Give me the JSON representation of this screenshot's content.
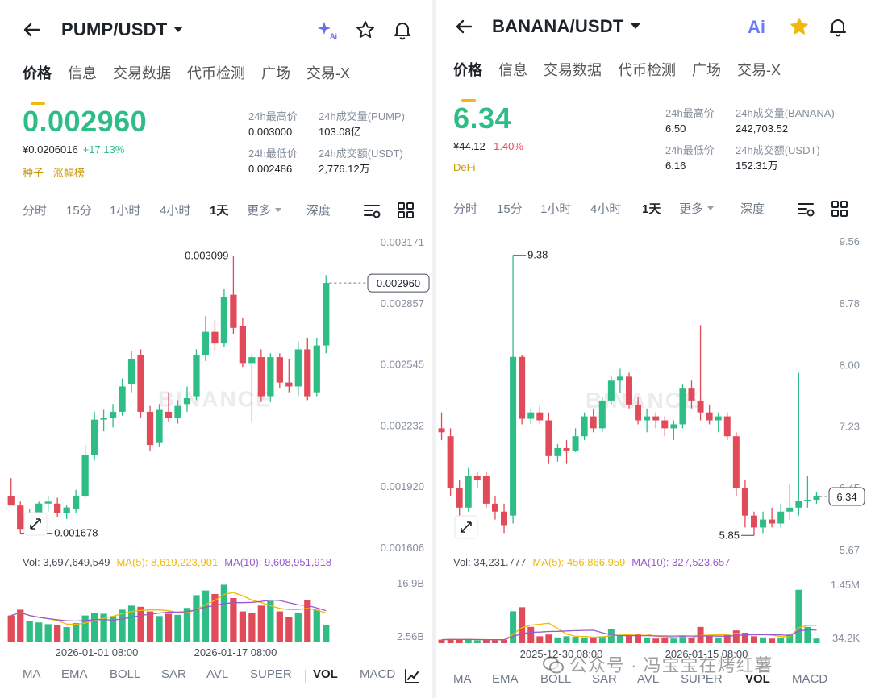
{
  "left": {
    "pair": "PUMP/USDT",
    "tabs": [
      "价格",
      "信息",
      "交易数据",
      "代币检测",
      "广场",
      "交易-X"
    ],
    "price": "0.002960",
    "fiat": "¥0.0206016",
    "change": "+17.13%",
    "tags": [
      "种子",
      "涨幅榜"
    ],
    "stats": {
      "high_label": "24h最高价",
      "high": "0.003000",
      "vol_label": "24h成交量(PUMP)",
      "vol": "103.08亿",
      "low_label": "24h最低价",
      "low": "0.002486",
      "amt_label": "24h成交额(USDT)",
      "amt": "2,776.12万"
    },
    "intervals": [
      "分时",
      "15分",
      "1小时",
      "4小时",
      "1天",
      "更多",
      "深度"
    ],
    "active_interval": "1天",
    "vol_info": {
      "vol": "Vol: 3,697,649,549",
      "ma5": "MA(5): 8,619,223,901",
      "ma10": "MA(10): 9,608,951,918"
    },
    "indicators": [
      "MA",
      "EMA",
      "BOLL",
      "SAR",
      "AVL",
      "SUPER",
      "VOL",
      "MACD"
    ],
    "active_indicator": "VOL"
  },
  "right": {
    "pair": "BANANA/USDT",
    "tabs": [
      "价格",
      "信息",
      "交易数据",
      "代币检测",
      "广场",
      "交易-X"
    ],
    "price": "6.34",
    "fiat": "¥44.12",
    "change": "-1.40%",
    "tags": [
      "DeFi"
    ],
    "stats": {
      "high_label": "24h最高价",
      "high": "6.50",
      "vol_label": "24h成交量(BANANA)",
      "vol": "242,703.52",
      "low_label": "24h最低价",
      "low": "6.16",
      "amt_label": "24h成交额(USDT)",
      "amt": "152.31万"
    },
    "intervals": [
      "分时",
      "15分",
      "1小时",
      "4小时",
      "1天",
      "更多",
      "深度"
    ],
    "active_interval": "1天",
    "vol_info": {
      "vol": "Vol: 34,231.777",
      "ma5": "MA(5): 456,866.959",
      "ma10": "MA(10): 327,523.657"
    },
    "indicators": [
      "MA",
      "EMA",
      "BOLL",
      "SAR",
      "AVL",
      "SUPER",
      "VOL",
      "MACD"
    ],
    "active_indicator": "VOL"
  },
  "watermark": "公众号 · 冯宝宝在烤红薯",
  "brand_watermark": "BINANCE",
  "colors": {
    "up": "#2ebd85",
    "down": "#e04a59",
    "accent": "#f0b90b",
    "ma5": "#f0b90b",
    "ma10": "#9b59d0"
  },
  "chart_data": [
    {
      "type": "candlestick",
      "title": "PUMP/USDT 1天",
      "y_ticks": [
        "0.003171",
        "0.002857",
        "0.002545",
        "0.002232",
        "0.001920",
        "0.001606"
      ],
      "ylim": [
        0.001606,
        0.003171
      ],
      "current_price": "0.002960",
      "max_label": "0.003099",
      "min_label": "0.001678",
      "x_ticks": [
        "2026-01-01 08:00",
        "2026-01-17 08:00"
      ],
      "vol_ticks": [
        "16.9B",
        "2.56B"
      ],
      "candles": [
        {
          "o": 0.00187,
          "h": 0.00196,
          "l": 0.00183,
          "c": 0.00182
        },
        {
          "o": 0.00182,
          "h": 0.00184,
          "l": 0.001678,
          "c": 0.0017
        },
        {
          "o": 0.00173,
          "h": 0.0018,
          "l": 0.0017,
          "c": 0.00178
        },
        {
          "o": 0.00178,
          "h": 0.00184,
          "l": 0.00175,
          "c": 0.00183
        },
        {
          "o": 0.00183,
          "h": 0.00187,
          "l": 0.00179,
          "c": 0.00184
        },
        {
          "o": 0.00183,
          "h": 0.00186,
          "l": 0.00176,
          "c": 0.00178
        },
        {
          "o": 0.00178,
          "h": 0.00182,
          "l": 0.00175,
          "c": 0.00181
        },
        {
          "o": 0.0018,
          "h": 0.0019,
          "l": 0.00178,
          "c": 0.00187
        },
        {
          "o": 0.00187,
          "h": 0.00213,
          "l": 0.00186,
          "c": 0.00208
        },
        {
          "o": 0.00208,
          "h": 0.0023,
          "l": 0.00205,
          "c": 0.00226
        },
        {
          "o": 0.00226,
          "h": 0.00231,
          "l": 0.0022,
          "c": 0.00227
        },
        {
          "o": 0.00227,
          "h": 0.00234,
          "l": 0.00222,
          "c": 0.0023
        },
        {
          "o": 0.0023,
          "h": 0.00247,
          "l": 0.00228,
          "c": 0.00243
        },
        {
          "o": 0.00244,
          "h": 0.00261,
          "l": 0.0024,
          "c": 0.00257
        },
        {
          "o": 0.00259,
          "h": 0.00262,
          "l": 0.00227,
          "c": 0.0023
        },
        {
          "o": 0.0023,
          "h": 0.00233,
          "l": 0.0021,
          "c": 0.00213
        },
        {
          "o": 0.00214,
          "h": 0.00234,
          "l": 0.00212,
          "c": 0.00231
        },
        {
          "o": 0.0023,
          "h": 0.0024,
          "l": 0.00225,
          "c": 0.00227
        },
        {
          "o": 0.00227,
          "h": 0.00236,
          "l": 0.00224,
          "c": 0.00233
        },
        {
          "o": 0.00234,
          "h": 0.00243,
          "l": 0.0023,
          "c": 0.00237
        },
        {
          "o": 0.00238,
          "h": 0.00262,
          "l": 0.00236,
          "c": 0.00259
        },
        {
          "o": 0.00259,
          "h": 0.00279,
          "l": 0.00256,
          "c": 0.00271
        },
        {
          "o": 0.00271,
          "h": 0.00277,
          "l": 0.00261,
          "c": 0.00265
        },
        {
          "o": 0.00265,
          "h": 0.00293,
          "l": 0.00263,
          "c": 0.00289
        },
        {
          "o": 0.0029,
          "h": 0.003099,
          "l": 0.0027,
          "c": 0.00273
        },
        {
          "o": 0.00274,
          "h": 0.00278,
          "l": 0.00253,
          "c": 0.00255
        },
        {
          "o": 0.00255,
          "h": 0.0026,
          "l": 0.00225,
          "c": 0.00258
        },
        {
          "o": 0.00258,
          "h": 0.00262,
          "l": 0.00235,
          "c": 0.00238
        },
        {
          "o": 0.00238,
          "h": 0.0026,
          "l": 0.00235,
          "c": 0.00258
        },
        {
          "o": 0.00258,
          "h": 0.0026,
          "l": 0.00242,
          "c": 0.00245
        },
        {
          "o": 0.00245,
          "h": 0.00257,
          "l": 0.0024,
          "c": 0.00243
        },
        {
          "o": 0.00243,
          "h": 0.00266,
          "l": 0.00238,
          "c": 0.00262
        },
        {
          "o": 0.00262,
          "h": 0.00268,
          "l": 0.00236,
          "c": 0.00238
        },
        {
          "o": 0.0024,
          "h": 0.00268,
          "l": 0.00238,
          "c": 0.00264
        },
        {
          "o": 0.00264,
          "h": 0.003,
          "l": 0.0026,
          "c": 0.00296
        }
      ],
      "volumes": [
        {
          "v": 0.45,
          "up": false
        },
        {
          "v": 0.55,
          "up": false
        },
        {
          "v": 0.35,
          "up": true
        },
        {
          "v": 0.33,
          "up": true
        },
        {
          "v": 0.3,
          "up": true
        },
        {
          "v": 0.28,
          "up": false
        },
        {
          "v": 0.25,
          "up": true
        },
        {
          "v": 0.32,
          "up": true
        },
        {
          "v": 0.45,
          "up": true
        },
        {
          "v": 0.5,
          "up": true
        },
        {
          "v": 0.48,
          "up": true
        },
        {
          "v": 0.44,
          "up": true
        },
        {
          "v": 0.55,
          "up": true
        },
        {
          "v": 0.62,
          "up": true
        },
        {
          "v": 0.6,
          "up": false
        },
        {
          "v": 0.52,
          "up": false
        },
        {
          "v": 0.44,
          "up": true
        },
        {
          "v": 0.48,
          "up": false
        },
        {
          "v": 0.46,
          "up": true
        },
        {
          "v": 0.58,
          "up": true
        },
        {
          "v": 0.8,
          "up": true
        },
        {
          "v": 0.88,
          "up": true
        },
        {
          "v": 0.82,
          "up": false
        },
        {
          "v": 0.98,
          "up": true
        },
        {
          "v": 0.75,
          "up": false
        },
        {
          "v": 0.52,
          "up": false
        },
        {
          "v": 0.5,
          "up": false
        },
        {
          "v": 0.62,
          "up": false
        },
        {
          "v": 0.7,
          "up": true
        },
        {
          "v": 0.52,
          "up": false
        },
        {
          "v": 0.42,
          "up": false
        },
        {
          "v": 0.5,
          "up": true
        },
        {
          "v": 0.72,
          "up": false
        },
        {
          "v": 0.55,
          "up": true
        },
        {
          "v": 0.28,
          "up": true
        }
      ]
    },
    {
      "type": "candlestick",
      "title": "BANANA/USDT 1天",
      "y_ticks": [
        "9.56",
        "8.78",
        "8.00",
        "7.23",
        "6.45",
        "5.67"
      ],
      "ylim": [
        5.67,
        9.56
      ],
      "current_price": "6.34",
      "max_label": "9.38",
      "min_label": "5.85",
      "x_ticks": [
        "2025-12-30 08:00",
        "2026-01-15 08:00"
      ],
      "vol_ticks": [
        "1.45M",
        "34.2K"
      ],
      "candles": [
        {
          "o": 7.2,
          "h": 7.4,
          "l": 7.05,
          "c": 7.15
        },
        {
          "o": 7.1,
          "h": 7.2,
          "l": 6.35,
          "c": 6.45
        },
        {
          "o": 6.45,
          "h": 6.55,
          "l": 6.05,
          "c": 6.2
        },
        {
          "o": 6.2,
          "h": 6.7,
          "l": 6.15,
          "c": 6.6
        },
        {
          "o": 6.6,
          "h": 6.65,
          "l": 6.45,
          "c": 6.55
        },
        {
          "o": 6.6,
          "h": 6.65,
          "l": 6.2,
          "c": 6.25
        },
        {
          "o": 6.25,
          "h": 6.35,
          "l": 6.05,
          "c": 6.15
        },
        {
          "o": 6.15,
          "h": 6.25,
          "l": 5.88,
          "c": 5.98
        },
        {
          "o": 6.1,
          "h": 9.38,
          "l": 6.0,
          "c": 8.1
        },
        {
          "o": 8.1,
          "h": 8.12,
          "l": 7.25,
          "c": 7.32
        },
        {
          "o": 7.32,
          "h": 7.45,
          "l": 7.25,
          "c": 7.4
        },
        {
          "o": 7.4,
          "h": 7.48,
          "l": 7.25,
          "c": 7.3
        },
        {
          "o": 7.3,
          "h": 7.4,
          "l": 6.75,
          "c": 6.85
        },
        {
          "o": 6.85,
          "h": 7.0,
          "l": 6.78,
          "c": 6.95
        },
        {
          "o": 6.95,
          "h": 7.05,
          "l": 6.75,
          "c": 6.92
        },
        {
          "o": 6.92,
          "h": 7.2,
          "l": 6.9,
          "c": 7.1
        },
        {
          "o": 7.1,
          "h": 7.4,
          "l": 7.05,
          "c": 7.35
        },
        {
          "o": 7.35,
          "h": 7.45,
          "l": 7.15,
          "c": 7.2
        },
        {
          "o": 7.2,
          "h": 7.6,
          "l": 7.15,
          "c": 7.55
        },
        {
          "o": 7.55,
          "h": 7.85,
          "l": 7.5,
          "c": 7.8
        },
        {
          "o": 7.8,
          "h": 7.95,
          "l": 7.65,
          "c": 7.85
        },
        {
          "o": 7.85,
          "h": 7.9,
          "l": 7.45,
          "c": 7.5
        },
        {
          "o": 7.5,
          "h": 7.6,
          "l": 7.25,
          "c": 7.3
        },
        {
          "o": 7.3,
          "h": 7.45,
          "l": 7.15,
          "c": 7.35
        },
        {
          "o": 7.35,
          "h": 7.4,
          "l": 7.2,
          "c": 7.3
        },
        {
          "o": 7.3,
          "h": 7.35,
          "l": 7.1,
          "c": 7.2
        },
        {
          "o": 7.2,
          "h": 7.3,
          "l": 7.05,
          "c": 7.25
        },
        {
          "o": 7.25,
          "h": 7.75,
          "l": 7.2,
          "c": 7.7
        },
        {
          "o": 7.7,
          "h": 7.8,
          "l": 7.45,
          "c": 7.55
        },
        {
          "o": 7.55,
          "h": 8.5,
          "l": 7.3,
          "c": 7.4
        },
        {
          "o": 7.4,
          "h": 7.5,
          "l": 7.25,
          "c": 7.3
        },
        {
          "o": 7.3,
          "h": 7.4,
          "l": 7.15,
          "c": 7.35
        },
        {
          "o": 7.35,
          "h": 7.4,
          "l": 7.05,
          "c": 7.1
        },
        {
          "o": 7.1,
          "h": 7.15,
          "l": 6.35,
          "c": 6.45
        },
        {
          "o": 6.45,
          "h": 6.55,
          "l": 5.95,
          "c": 6.1
        },
        {
          "o": 6.1,
          "h": 6.15,
          "l": 5.85,
          "c": 5.95
        },
        {
          "o": 5.95,
          "h": 6.15,
          "l": 5.88,
          "c": 6.05
        },
        {
          "o": 6.05,
          "h": 6.2,
          "l": 5.95,
          "c": 6.0
        },
        {
          "o": 6.0,
          "h": 6.25,
          "l": 5.95,
          "c": 6.15
        },
        {
          "o": 6.15,
          "h": 6.5,
          "l": 6.05,
          "c": 6.2
        },
        {
          "o": 6.2,
          "h": 7.9,
          "l": 6.1,
          "c": 6.28
        },
        {
          "o": 6.28,
          "h": 6.6,
          "l": 6.2,
          "c": 6.3
        },
        {
          "o": 6.3,
          "h": 6.4,
          "l": 6.25,
          "c": 6.34
        }
      ],
      "volumes": [
        {
          "v": 0.06,
          "up": false
        },
        {
          "v": 0.07,
          "up": false
        },
        {
          "v": 0.06,
          "up": false
        },
        {
          "v": 0.07,
          "up": true
        },
        {
          "v": 0.05,
          "up": true
        },
        {
          "v": 0.06,
          "up": false
        },
        {
          "v": 0.05,
          "up": false
        },
        {
          "v": 0.06,
          "up": false
        },
        {
          "v": 0.55,
          "up": true
        },
        {
          "v": 0.62,
          "up": false
        },
        {
          "v": 0.28,
          "up": false
        },
        {
          "v": 0.12,
          "up": false
        },
        {
          "v": 0.15,
          "up": false
        },
        {
          "v": 0.1,
          "up": true
        },
        {
          "v": 0.12,
          "up": true
        },
        {
          "v": 0.11,
          "up": true
        },
        {
          "v": 0.1,
          "up": true
        },
        {
          "v": 0.09,
          "up": false
        },
        {
          "v": 0.12,
          "up": true
        },
        {
          "v": 0.25,
          "up": true
        },
        {
          "v": 0.14,
          "up": true
        },
        {
          "v": 0.13,
          "up": false
        },
        {
          "v": 0.15,
          "up": false
        },
        {
          "v": 0.1,
          "up": true
        },
        {
          "v": 0.08,
          "up": false
        },
        {
          "v": 0.09,
          "up": false
        },
        {
          "v": 0.08,
          "up": true
        },
        {
          "v": 0.12,
          "up": true
        },
        {
          "v": 0.1,
          "up": false
        },
        {
          "v": 0.28,
          "up": false
        },
        {
          "v": 0.12,
          "up": false
        },
        {
          "v": 0.1,
          "up": true
        },
        {
          "v": 0.14,
          "up": false
        },
        {
          "v": 0.22,
          "up": false
        },
        {
          "v": 0.18,
          "up": false
        },
        {
          "v": 0.12,
          "up": false
        },
        {
          "v": 0.1,
          "up": true
        },
        {
          "v": 0.08,
          "up": false
        },
        {
          "v": 0.1,
          "up": true
        },
        {
          "v": 0.15,
          "up": true
        },
        {
          "v": 0.92,
          "up": true
        },
        {
          "v": 0.28,
          "up": true
        },
        {
          "v": 0.08,
          "up": true
        }
      ]
    }
  ]
}
